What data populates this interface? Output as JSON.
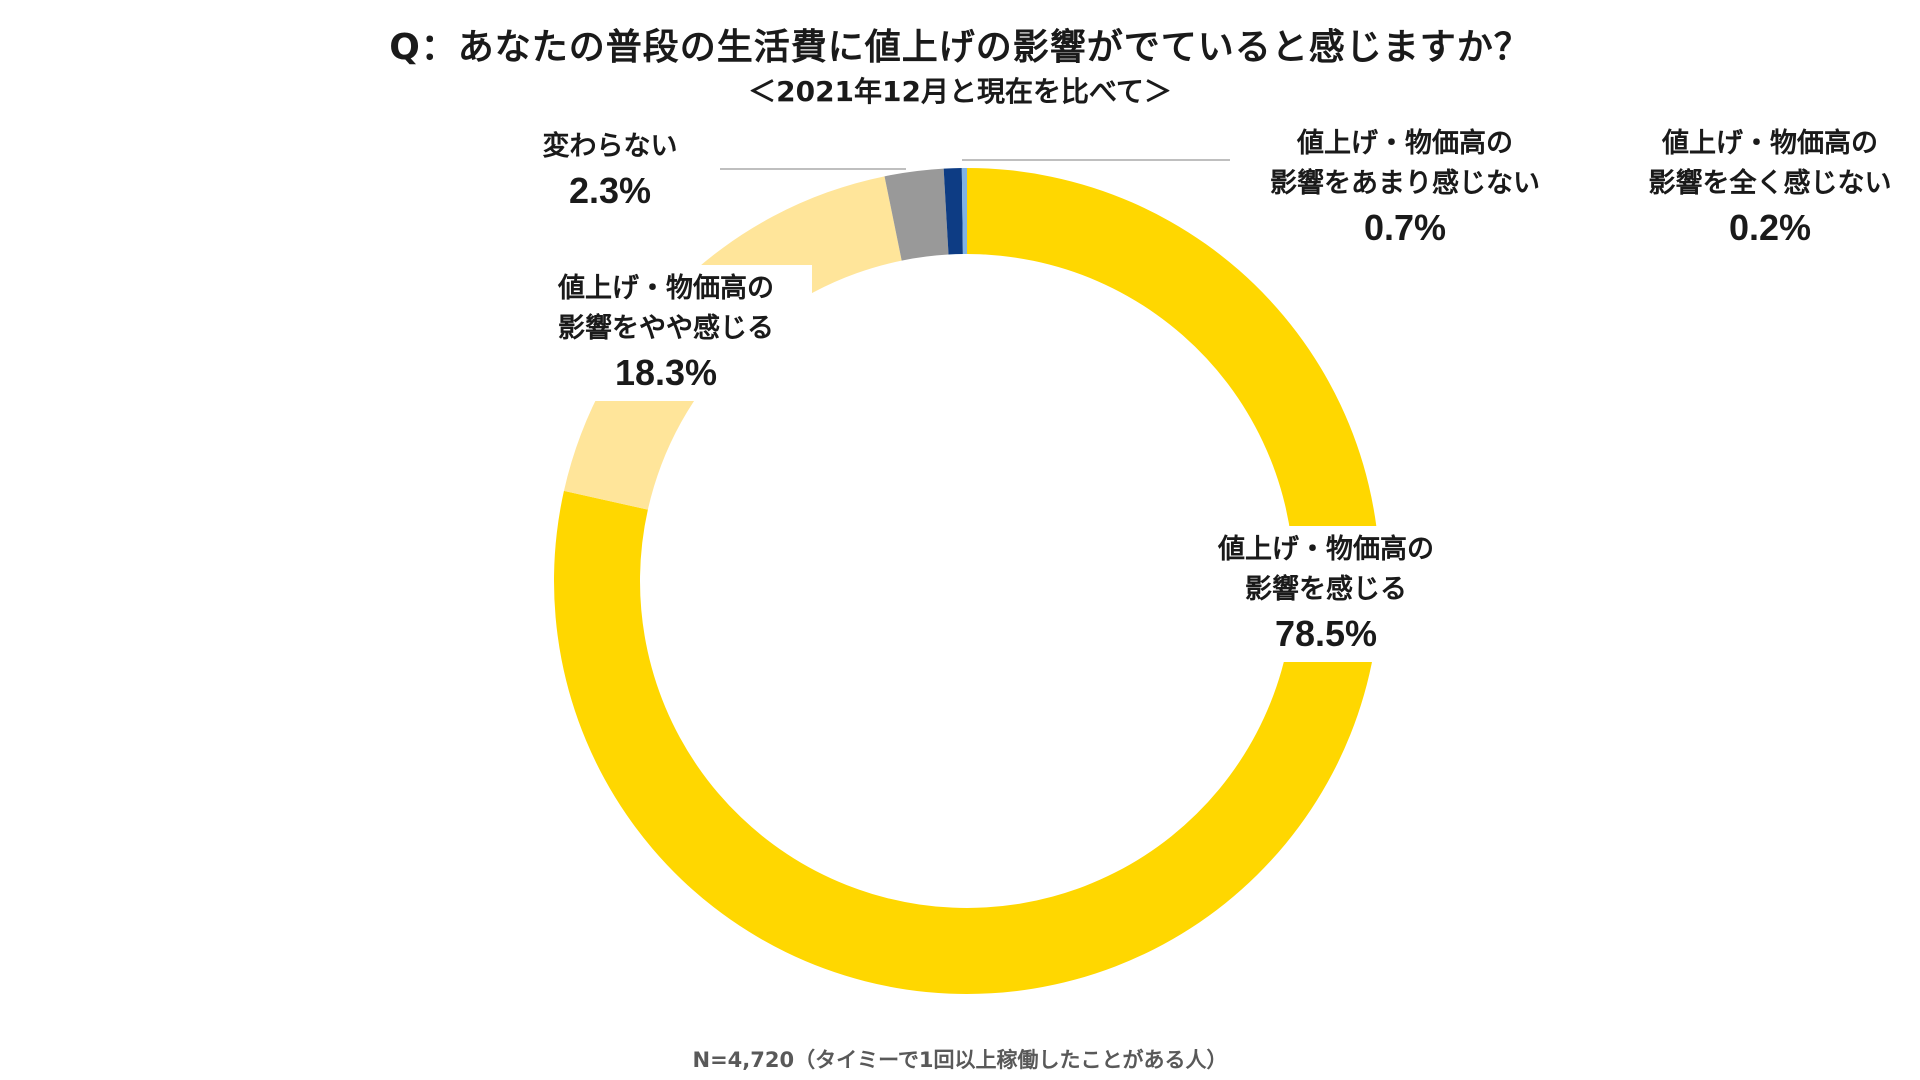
{
  "chart_data": {
    "type": "pie",
    "style": "donut",
    "title": "Q：あなたの普段の生活費に値上げの影響がでていると感じますか？",
    "subtitle": "＜2021年12月と現在を比べて＞",
    "slices": [
      {
        "key": "strong",
        "label": "値上げ・物価高の\n影響を感じる",
        "pct_label": "78.5%",
        "value": 78.5,
        "color": "#FFD700"
      },
      {
        "key": "some",
        "label": "値上げ・物価高の\n影響をやや感じる",
        "pct_label": "18.3%",
        "value": 18.3,
        "color": "#FFE59A"
      },
      {
        "key": "same",
        "label": "変わらない",
        "pct_label": "2.3%",
        "value": 2.3,
        "color": "#999999"
      },
      {
        "key": "little",
        "label": "値上げ・物価高の\n影響をあまり感じない",
        "pct_label": "0.7%",
        "value": 0.7,
        "color": "#0D3C84"
      },
      {
        "key": "none",
        "label": "値上げ・物価高の\n影響を全く感じない",
        "pct_label": "0.2%",
        "value": 0.2,
        "color": "#7FB2E5"
      }
    ],
    "footnote": "N=4,720（タイミーで1回以上稼働したことがある人）",
    "legend": "none"
  }
}
